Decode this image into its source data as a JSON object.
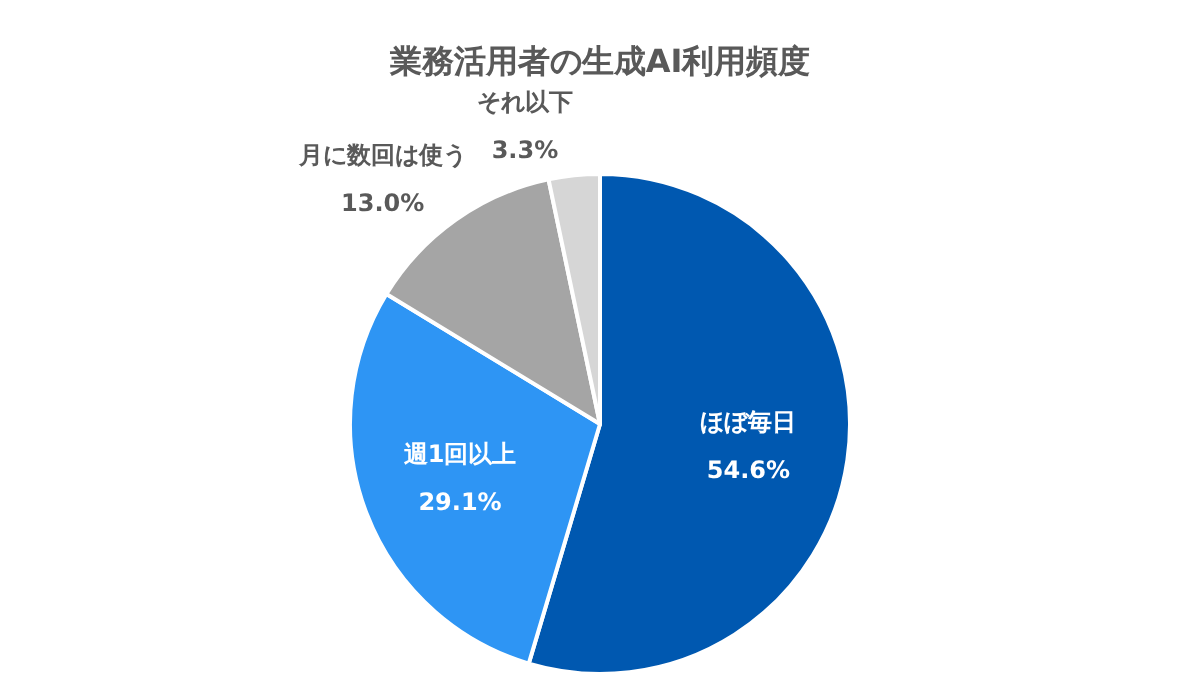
{
  "chart_data": {
    "type": "pie",
    "title": "業務活用者の生成AI利用頻度",
    "categories": [
      "ほぼ毎日",
      "週1回以上",
      "月に数回は使う",
      "それ以下"
    ],
    "values": [
      54.6,
      29.1,
      13.0,
      3.3
    ],
    "colors": [
      "#0058b0",
      "#2e95f4",
      "#a5a5a5",
      "#d6d6d6"
    ],
    "value_labels": [
      "54.6%",
      "29.1%",
      "13.0%",
      "3.3%"
    ]
  }
}
